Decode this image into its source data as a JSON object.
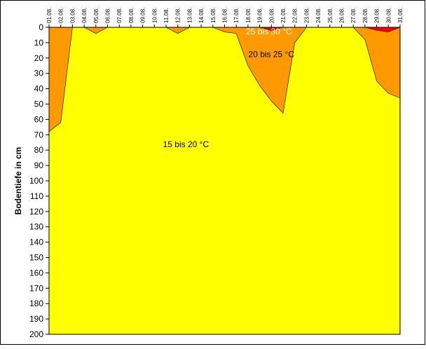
{
  "chart_data": {
    "type": "area",
    "ylabel": "Bodentiefe in cm",
    "xlabel": "",
    "ylim": [
      0,
      200
    ],
    "y_inverted": true,
    "y_ticks": [
      0,
      10,
      20,
      30,
      40,
      50,
      60,
      70,
      80,
      90,
      100,
      110,
      120,
      130,
      140,
      150,
      160,
      170,
      180,
      190,
      200
    ],
    "categories": [
      "01.08.",
      "02.08.",
      "03.08.",
      "04.08.",
      "05.08.",
      "06.08.",
      "07.08.",
      "08.08.",
      "09.08.",
      "10.08.",
      "11.08.",
      "12.08.",
      "13.08.",
      "14.08.",
      "15.08.",
      "16.08.",
      "17.08.",
      "18.08.",
      "19.08.",
      "20.08.",
      "21.08.",
      "22.08.",
      "23.08.",
      "24.08.",
      "25.08.",
      "26.08.",
      "27.08.",
      "28.08.",
      "29.08.",
      "30.08.",
      "31.08."
    ],
    "series": [
      {
        "name": "15 bis 20 °C",
        "color": "#ffff00",
        "depth_lower": [
          200,
          200,
          200,
          200,
          200,
          200,
          200,
          200,
          200,
          200,
          200,
          200,
          200,
          200,
          200,
          200,
          200,
          200,
          200,
          200,
          200,
          200,
          200,
          200,
          200,
          200,
          200,
          200,
          200,
          200,
          200
        ]
      },
      {
        "name": "20 bis 25 °C",
        "color": "#ff9900",
        "depth_lower": [
          68,
          62,
          0,
          0,
          4,
          0,
          0,
          0,
          0,
          0,
          0,
          4,
          0,
          0,
          0,
          3,
          4,
          25,
          38,
          48,
          56,
          10,
          0,
          0,
          0,
          0,
          0,
          8,
          35,
          43,
          46
        ]
      },
      {
        "name": "25 bis 30 °C",
        "color": "#ff0000",
        "depth_lower": [
          0,
          0,
          0,
          0,
          0,
          0,
          0,
          0,
          0,
          0,
          0,
          0,
          0,
          0,
          0,
          0,
          0,
          0,
          0,
          2,
          0,
          0,
          0,
          0,
          0,
          0,
          0,
          0,
          2,
          3,
          0
        ]
      }
    ],
    "grid": false,
    "legend": "none",
    "annotations": [
      {
        "text": "25 bis 30 °C",
        "color": "#ffffff"
      },
      {
        "text": "20 bis 25 °C",
        "color": "#000000"
      },
      {
        "text": "15 bis 20 °C",
        "color": "#000000"
      }
    ]
  }
}
